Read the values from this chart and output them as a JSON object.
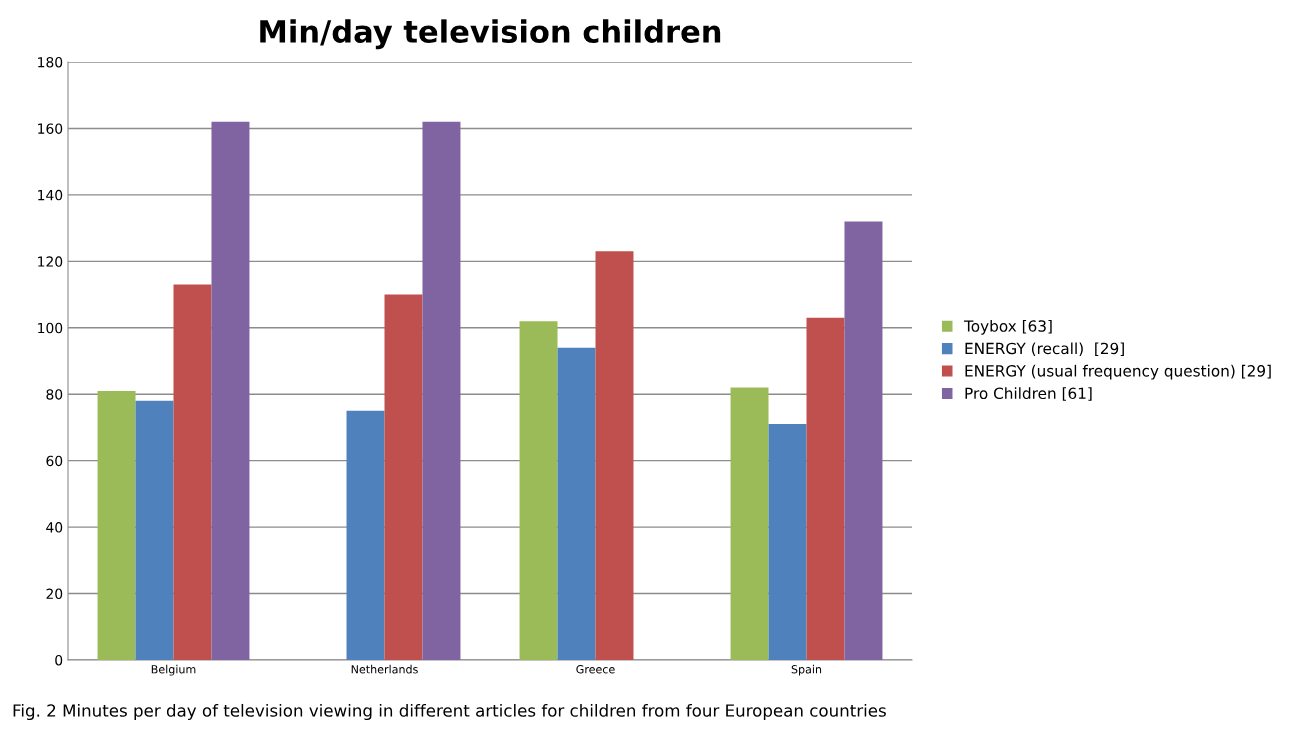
{
  "chart_data": {
    "type": "bar",
    "title": "Min/day television children",
    "categories": [
      "Belgium",
      "Netherlands",
      "Greece",
      "Spain"
    ],
    "series": [
      {
        "name": "Toybox [63]",
        "color": "#9bbb59",
        "values": [
          81,
          null,
          102,
          82
        ]
      },
      {
        "name": "ENERGY (recall)  [29]",
        "color": "#4f81bd",
        "values": [
          78,
          75,
          94,
          71
        ]
      },
      {
        "name": "ENERGY (usual frequency question) [29]",
        "color": "#c0504d",
        "values": [
          113,
          110,
          123,
          103
        ]
      },
      {
        "name": "Pro Children [61]",
        "color": "#8064a2",
        "values": [
          162,
          162,
          null,
          132
        ]
      }
    ],
    "ylim": [
      0,
      180
    ],
    "yticks": [
      0,
      20,
      40,
      60,
      80,
      100,
      120,
      140,
      160,
      180
    ],
    "grid": "y",
    "legend": "right",
    "annotations": [
      "Fig. 2 Minutes per day of television viewing in different articles for children from four European countries"
    ]
  }
}
